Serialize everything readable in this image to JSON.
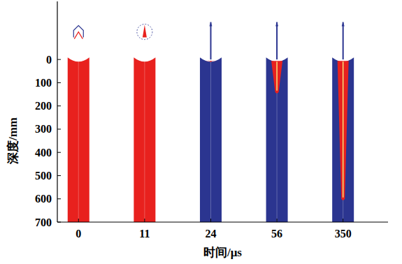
{
  "chart_data": {
    "type": "bar",
    "x_label": "时间/μs",
    "y_label": "深度/mm",
    "categories": [
      "0",
      "11",
      "24",
      "56",
      "350"
    ],
    "values": [
      0,
      0,
      5,
      140,
      600
    ],
    "colors": [
      "#e8211e",
      "#e8211e",
      "#2b3590",
      "#2b3590",
      "#2b3590"
    ],
    "ylim": [
      -250,
      700
    ],
    "yticks": [
      0,
      100,
      200,
      300,
      400,
      500,
      600,
      700
    ]
  }
}
